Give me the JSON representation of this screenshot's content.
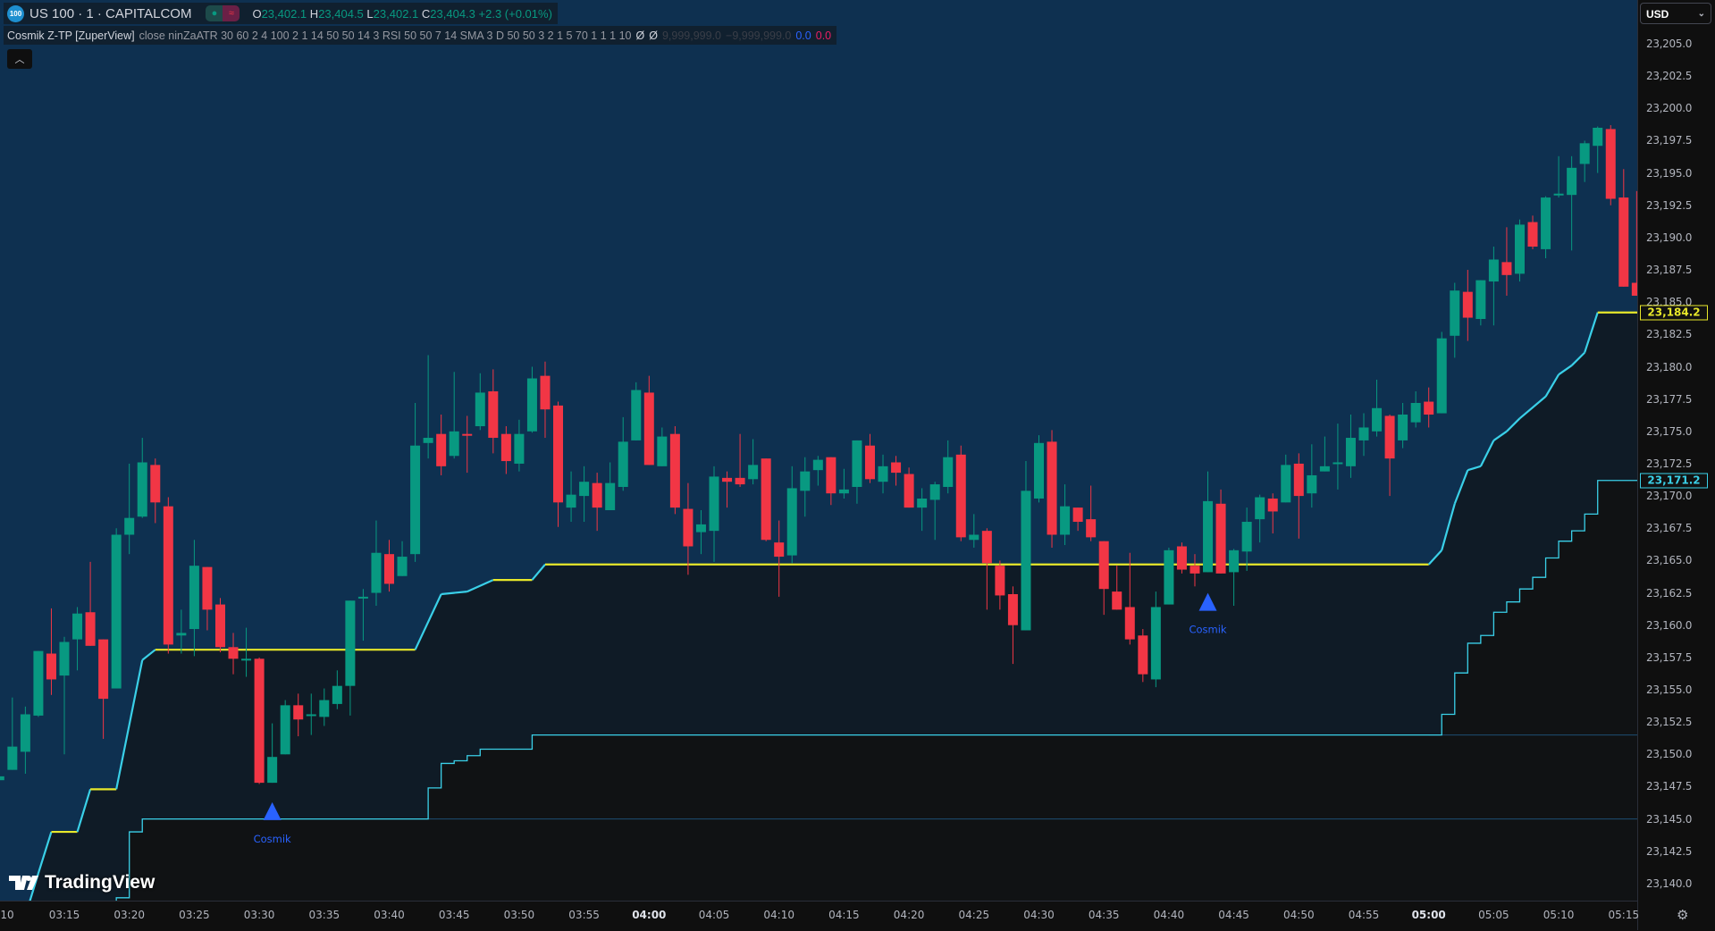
{
  "symbol": {
    "logo_text": "100",
    "title": "US 100 · 1 · CAPITALCOM",
    "open_label": "O",
    "open": "23,402.1",
    "high_label": "H",
    "high": "23,404.5",
    "low_label": "L",
    "low": "23,402.1",
    "close_label": "C",
    "close": "23,404.3",
    "change": "+2.3 (+0.01%)",
    "status_icons": [
      "market-open-dot-icon",
      "data-delay-wave-icon"
    ]
  },
  "indicator": {
    "name": "Cosmik Z-TP [ZuperView]",
    "params": "close ninZaATR 30 60 2 4 100 2 1 14 50 50 14 3 RSI 50 50 7 14 SMA 3 D 50 50 3 2 1 5 70 1 1 1 10",
    "empty1": "Ø",
    "empty2": "Ø",
    "val1": "9,999,999.0",
    "val2": "−9,999,999.0",
    "val3": "0.0",
    "val4": "0.0"
  },
  "collapse_icon": "chevron-up-icon",
  "currency": "USD",
  "watermark": "TradingView",
  "colors": {
    "background": "#0e3050",
    "up": "#089981",
    "down": "#f23645",
    "trail_flat": "#e8e82a",
    "trail_rising": "#3ad0e8",
    "signal": "#2962ff"
  },
  "chart_data": {
    "type": "candlestick",
    "interval": "1 minute",
    "y_ticks": [
      "23,205.0",
      "23,202.5",
      "23,200.0",
      "23,197.5",
      "23,195.0",
      "23,192.5",
      "23,190.0",
      "23,187.5",
      "23,185.0",
      "23,182.5",
      "23,180.0",
      "23,177.5",
      "23,175.0",
      "23,172.5",
      "23,170.0",
      "23,167.5",
      "23,165.0",
      "23,162.5",
      "23,160.0",
      "23,157.5",
      "23,155.0",
      "23,152.5",
      "23,150.0",
      "23,147.5",
      "23,145.0",
      "23,142.5",
      "23,140.0"
    ],
    "x_ticks": [
      {
        "t": "03:10",
        "label": "10"
      },
      {
        "t": "03:15",
        "label": "03:15"
      },
      {
        "t": "03:20",
        "label": "03:20"
      },
      {
        "t": "03:25",
        "label": "03:25"
      },
      {
        "t": "03:30",
        "label": "03:30"
      },
      {
        "t": "03:35",
        "label": "03:35"
      },
      {
        "t": "03:40",
        "label": "03:40"
      },
      {
        "t": "03:45",
        "label": "03:45"
      },
      {
        "t": "03:50",
        "label": "03:50"
      },
      {
        "t": "03:55",
        "label": "03:55"
      },
      {
        "t": "04:00",
        "label": "04:00",
        "bold": true
      },
      {
        "t": "04:05",
        "label": "04:05"
      },
      {
        "t": "04:10",
        "label": "04:10"
      },
      {
        "t": "04:15",
        "label": "04:15"
      },
      {
        "t": "04:20",
        "label": "04:20"
      },
      {
        "t": "04:25",
        "label": "04:25"
      },
      {
        "t": "04:30",
        "label": "04:30"
      },
      {
        "t": "04:35",
        "label": "04:35"
      },
      {
        "t": "04:40",
        "label": "04:40"
      },
      {
        "t": "04:45",
        "label": "04:45"
      },
      {
        "t": "04:50",
        "label": "04:50"
      },
      {
        "t": "04:55",
        "label": "04:55"
      },
      {
        "t": "05:00",
        "label": "05:00",
        "bold": true
      },
      {
        "t": "05:05",
        "label": "05:05"
      },
      {
        "t": "05:10",
        "label": "05:10"
      },
      {
        "t": "05:15",
        "label": "05:15"
      }
    ],
    "ylim": [
      23139.0,
      23208.4
    ],
    "grid": false,
    "candles_columns": [
      "time",
      "open",
      "high",
      "low",
      "close"
    ],
    "candles": [
      [
        "03:10",
        23148.0,
        23148.4,
        23148.0,
        23148.3
      ],
      [
        "03:11",
        23148.8,
        23154.4,
        23148.8,
        23150.6
      ],
      [
        "03:12",
        23150.2,
        23153.7,
        23148.5,
        23153.1
      ],
      [
        "03:13",
        23153.0,
        23158.0,
        23152.9,
        23158.0
      ],
      [
        "03:14",
        23157.8,
        23161.3,
        23154.6,
        23155.8
      ],
      [
        "03:15",
        23156.1,
        23159.1,
        23150.0,
        23158.7
      ],
      [
        "03:16",
        23158.9,
        23161.4,
        23156.5,
        23160.9
      ],
      [
        "03:17",
        23161.0,
        23164.9,
        23158.4,
        23158.4
      ],
      [
        "03:18",
        23158.9,
        23158.9,
        23151.2,
        23154.3
      ],
      [
        "03:19",
        23155.1,
        23167.5,
        23155.1,
        23167.0
      ],
      [
        "03:20",
        23167.0,
        23172.5,
        23165.5,
        23168.3
      ],
      [
        "03:21",
        23168.4,
        23174.5,
        23168.3,
        23172.6
      ],
      [
        "03:22",
        23172.4,
        23172.9,
        23167.9,
        23169.5
      ],
      [
        "03:23",
        23169.2,
        23169.9,
        23157.8,
        23158.5
      ],
      [
        "03:24",
        23159.2,
        23161.2,
        23157.8,
        23159.4
      ],
      [
        "03:25",
        23159.7,
        23166.6,
        23157.6,
        23164.6
      ],
      [
        "03:26",
        23164.5,
        23164.5,
        23159.6,
        23161.2
      ],
      [
        "03:27",
        23161.6,
        23162.1,
        23157.9,
        23158.3
      ],
      [
        "03:28",
        23158.3,
        23159.4,
        23156.2,
        23157.4
      ],
      [
        "03:29",
        23157.3,
        23159.8,
        23156.0,
        23157.4
      ],
      [
        "03:30",
        23157.4,
        23157.5,
        23147.7,
        23147.8
      ],
      [
        "03:31",
        23147.8,
        23152.4,
        23147.8,
        23149.8
      ],
      [
        "03:32",
        23150.0,
        23154.2,
        23150.0,
        23153.8
      ],
      [
        "03:33",
        23153.8,
        23154.7,
        23151.4,
        23152.7
      ],
      [
        "03:34",
        23153.0,
        23154.7,
        23151.5,
        23153.1
      ],
      [
        "03:35",
        23152.9,
        23155.1,
        23152.2,
        23154.2
      ],
      [
        "03:36",
        23153.9,
        23156.5,
        23153.5,
        23155.3
      ],
      [
        "03:37",
        23155.3,
        23161.9,
        23153.0,
        23161.9
      ],
      [
        "03:38",
        23162.1,
        23162.8,
        23158.8,
        23162.2
      ],
      [
        "03:39",
        23162.5,
        23168.1,
        23161.5,
        23165.6
      ],
      [
        "03:40",
        23165.5,
        23166.6,
        23162.6,
        23163.2
      ],
      [
        "03:41",
        23163.8,
        23166.5,
        23163.8,
        23165.3
      ],
      [
        "03:42",
        23165.5,
        23177.2,
        23164.9,
        23173.9
      ],
      [
        "03:43",
        23174.1,
        23180.9,
        23172.9,
        23174.5
      ],
      [
        "03:44",
        23174.8,
        23176.3,
        23171.6,
        23172.3
      ],
      [
        "03:45",
        23173.1,
        23179.6,
        23172.9,
        23175.0
      ],
      [
        "03:46",
        23174.8,
        23176.2,
        23171.8,
        23174.7
      ],
      [
        "03:47",
        23175.4,
        23179.5,
        23175.1,
        23178.0
      ],
      [
        "03:48",
        23178.1,
        23179.8,
        23173.3,
        23174.5
      ],
      [
        "03:49",
        23174.8,
        23175.4,
        23171.7,
        23172.7
      ],
      [
        "03:50",
        23172.5,
        23175.9,
        23171.9,
        23174.8
      ],
      [
        "03:51",
        23175.0,
        23180.0,
        23174.9,
        23179.1
      ],
      [
        "03:52",
        23179.3,
        23180.4,
        23174.5,
        23176.7
      ],
      [
        "03:53",
        23177.0,
        23177.3,
        23167.6,
        23169.5
      ],
      [
        "03:54",
        23169.1,
        23171.9,
        23168.0,
        23170.1
      ],
      [
        "03:55",
        23170.0,
        23172.3,
        23168.0,
        23171.1
      ],
      [
        "03:56",
        23171.0,
        23171.8,
        23167.3,
        23169.1
      ],
      [
        "03:57",
        23168.9,
        23172.6,
        23168.9,
        23171.0
      ],
      [
        "03:58",
        23170.7,
        23176.1,
        23170.4,
        23174.2
      ],
      [
        "03:59",
        23174.3,
        23178.8,
        23174.3,
        23178.2
      ],
      [
        "04:00",
        23178.0,
        23179.3,
        23172.4,
        23172.4
      ],
      [
        "04:01",
        23172.3,
        23175.3,
        23172.3,
        23174.6
      ],
      [
        "04:02",
        23174.8,
        23175.4,
        23168.6,
        23169.1
      ],
      [
        "04:03",
        23169.0,
        23171.0,
        23163.9,
        23166.1
      ],
      [
        "04:04",
        23167.2,
        23168.9,
        23165.5,
        23167.8
      ],
      [
        "04:05",
        23167.3,
        23172.3,
        23164.9,
        23171.5
      ],
      [
        "04:06",
        23171.4,
        23171.9,
        23169.1,
        23171.1
      ],
      [
        "04:07",
        23171.4,
        23174.8,
        23170.7,
        23170.9
      ],
      [
        "04:08",
        23171.3,
        23174.4,
        23170.9,
        23172.4
      ],
      [
        "04:09",
        23172.9,
        23172.9,
        23166.5,
        23166.6
      ],
      [
        "04:10",
        23166.4,
        23168.1,
        23162.2,
        23165.3
      ],
      [
        "04:11",
        23165.4,
        23172.3,
        23164.8,
        23170.6
      ],
      [
        "04:12",
        23170.4,
        23173.0,
        23168.4,
        23171.9
      ],
      [
        "04:13",
        23172.0,
        23173.1,
        23170.8,
        23172.8
      ],
      [
        "04:14",
        23173.0,
        23173.0,
        23169.3,
        23170.2
      ],
      [
        "04:15",
        23170.2,
        23172.1,
        23169.8,
        23170.5
      ],
      [
        "04:16",
        23170.7,
        23174.3,
        23169.4,
        23174.3
      ],
      [
        "04:17",
        23173.9,
        23174.8,
        23171.0,
        23171.3
      ],
      [
        "04:18",
        23171.1,
        23173.2,
        23170.2,
        23172.3
      ],
      [
        "04:19",
        23172.6,
        23173.1,
        23170.8,
        23171.8
      ],
      [
        "04:20",
        23171.7,
        23172.2,
        23169.1,
        23169.1
      ],
      [
        "04:21",
        23169.1,
        23170.6,
        23167.3,
        23169.8
      ],
      [
        "04:22",
        23169.7,
        23171.1,
        23166.6,
        23170.9
      ],
      [
        "04:23",
        23170.7,
        23174.3,
        23170.2,
        23173.0
      ],
      [
        "04:24",
        23173.2,
        23173.9,
        23166.5,
        23166.8
      ],
      [
        "04:25",
        23166.6,
        23168.6,
        23166.0,
        23167.0
      ],
      [
        "04:26",
        23167.3,
        23167.5,
        23161.2,
        23164.8
      ],
      [
        "04:27",
        23164.6,
        23165.0,
        23161.2,
        23162.3
      ],
      [
        "04:28",
        23162.4,
        23163.0,
        23157.0,
        23160.0
      ],
      [
        "04:29",
        23159.6,
        23172.7,
        23159.6,
        23170.4
      ],
      [
        "04:30",
        23169.8,
        23174.7,
        23169.5,
        23174.1
      ],
      [
        "04:31",
        23174.2,
        23175.1,
        23166.0,
        23167.0
      ],
      [
        "04:32",
        23167.0,
        23170.9,
        23166.2,
        23169.2
      ],
      [
        "04:33",
        23169.1,
        23169.1,
        23167.3,
        23168.0
      ],
      [
        "04:34",
        23168.2,
        23170.8,
        23166.5,
        23166.8
      ],
      [
        "04:35",
        23166.5,
        23166.5,
        23160.8,
        23162.8
      ],
      [
        "04:36",
        23162.6,
        23164.6,
        23161.2,
        23161.2
      ],
      [
        "04:37",
        23161.4,
        23165.6,
        23158.5,
        23158.9
      ],
      [
        "04:38",
        23159.2,
        23159.7,
        23155.6,
        23156.2
      ],
      [
        "04:39",
        23155.8,
        23162.6,
        23155.2,
        23161.4
      ],
      [
        "04:40",
        23161.6,
        23166.0,
        23161.6,
        23165.8
      ],
      [
        "04:41",
        23166.1,
        23166.4,
        23164.0,
        23164.3
      ],
      [
        "04:42",
        23164.6,
        23165.5,
        23163.0,
        23164.0
      ],
      [
        "04:43",
        23164.1,
        23171.9,
        23164.1,
        23169.6
      ],
      [
        "04:44",
        23169.4,
        23170.5,
        23164.0,
        23164.0
      ],
      [
        "04:45",
        23164.1,
        23165.9,
        23161.5,
        23165.8
      ],
      [
        "04:46",
        23165.7,
        23169.1,
        23164.2,
        23168.0
      ],
      [
        "04:47",
        23168.2,
        23170.1,
        23166.4,
        23169.9
      ],
      [
        "04:48",
        23169.8,
        23170.2,
        23167.1,
        23168.8
      ],
      [
        "04:49",
        23169.5,
        23173.2,
        23169.5,
        23172.4
      ],
      [
        "04:50",
        23172.5,
        23173.3,
        23166.7,
        23170.0
      ],
      [
        "04:51",
        23170.2,
        23174.0,
        23169.1,
        23171.6
      ],
      [
        "04:52",
        23171.9,
        23174.6,
        23171.9,
        23172.3
      ],
      [
        "04:53",
        23172.5,
        23175.6,
        23170.5,
        23172.6
      ],
      [
        "04:54",
        23172.3,
        23176.3,
        23171.4,
        23174.5
      ],
      [
        "04:55",
        23174.3,
        23176.4,
        23173.1,
        23175.3
      ],
      [
        "04:56",
        23175.0,
        23179.0,
        23174.6,
        23176.8
      ],
      [
        "04:57",
        23176.2,
        23176.3,
        23170.0,
        23172.9
      ],
      [
        "04:58",
        23174.3,
        23177.2,
        23173.7,
        23176.3
      ],
      [
        "04:59",
        23175.7,
        23178.1,
        23175.3,
        23177.2
      ],
      [
        "05:00",
        23177.3,
        23178.4,
        23175.3,
        23176.3
      ],
      [
        "05:01",
        23176.4,
        23182.7,
        23176.4,
        23182.2
      ],
      [
        "05:02",
        23182.4,
        23186.5,
        23180.7,
        23185.9
      ],
      [
        "05:03",
        23185.8,
        23187.5,
        23182.0,
        23183.8
      ],
      [
        "05:04",
        23183.7,
        23186.7,
        23183.2,
        23186.7
      ],
      [
        "05:05",
        23186.6,
        23189.3,
        23183.2,
        23188.3
      ],
      [
        "05:06",
        23188.1,
        23190.8,
        23185.5,
        23187.1
      ],
      [
        "05:07",
        23187.2,
        23191.4,
        23186.6,
        23191.0
      ],
      [
        "05:08",
        23191.2,
        23191.7,
        23189.1,
        23189.3
      ],
      [
        "05:09",
        23189.1,
        23193.2,
        23188.4,
        23193.1
      ],
      [
        "05:10",
        23193.3,
        23196.3,
        23193.1,
        23193.4
      ],
      [
        "05:11",
        23193.3,
        23196.3,
        23189.0,
        23195.4
      ],
      [
        "05:12",
        23195.7,
        23197.5,
        23194.3,
        23197.3
      ],
      [
        "05:13",
        23197.1,
        23198.6,
        23195.0,
        23198.5
      ],
      [
        "05:14",
        23198.4,
        23198.7,
        23192.5,
        23193.0
      ],
      [
        "05:15",
        23193.1,
        23195.3,
        23186.2,
        23186.2
      ],
      [
        "05:16",
        23186.5,
        23193.6,
        23185.5,
        23185.5
      ]
    ],
    "upper_trail": [
      [
        "03:12",
        23137.5
      ],
      [
        "03:13",
        23140.8
      ],
      [
        "03:14",
        23144.0
      ],
      [
        "03:16",
        23144.0
      ],
      [
        "03:17",
        23147.3
      ],
      [
        "03:19",
        23147.3
      ],
      [
        "03:21",
        23157.3
      ],
      [
        "03:22",
        23158.1
      ],
      [
        "03:42",
        23158.1
      ],
      [
        "03:44",
        23162.4
      ],
      [
        "03:46",
        23162.6
      ],
      [
        "03:48",
        23163.5
      ],
      [
        "03:51",
        23163.5
      ],
      [
        "03:52",
        23164.7
      ],
      [
        "05:00",
        23164.7
      ],
      [
        "05:01",
        23165.8
      ],
      [
        "05:02",
        23169.4
      ],
      [
        "05:03",
        23172.0
      ],
      [
        "05:04",
        23172.3
      ],
      [
        "05:05",
        23174.3
      ],
      [
        "05:06",
        23175.0
      ],
      [
        "05:07",
        23176.0
      ],
      [
        "05:09",
        23177.7
      ],
      [
        "05:10",
        23179.4
      ],
      [
        "05:11",
        23180.1
      ],
      [
        "05:12",
        23181.1
      ],
      [
        "05:13",
        23184.2
      ],
      [
        "05:17",
        23184.2
      ]
    ],
    "lower_trail": [
      [
        "03:18",
        23137.0
      ],
      [
        "03:19",
        23138.9
      ],
      [
        "03:20",
        23144.0
      ],
      [
        "03:21",
        23145.0
      ],
      [
        "03:43",
        23147.4
      ],
      [
        "03:44",
        23149.3
      ],
      [
        "03:45",
        23149.5
      ],
      [
        "03:46",
        23149.9
      ],
      [
        "03:47",
        23150.4
      ],
      [
        "03:51",
        23151.5
      ],
      [
        "05:01",
        23153.1
      ],
      [
        "05:02",
        23156.3
      ],
      [
        "05:03",
        23158.6
      ],
      [
        "05:04",
        23159.2
      ],
      [
        "05:05",
        23161.0
      ],
      [
        "05:06",
        23161.8
      ],
      [
        "05:07",
        23162.8
      ],
      [
        "05:08",
        23163.7
      ],
      [
        "05:09",
        23165.2
      ],
      [
        "05:10",
        23166.5
      ],
      [
        "05:11",
        23167.3
      ],
      [
        "05:12",
        23168.6
      ],
      [
        "05:13",
        23171.2
      ],
      [
        "05:17",
        23171.2
      ]
    ],
    "extended_levels": [
      {
        "from": "03:21",
        "value": 23145.0
      },
      {
        "from": "05:00",
        "value": 23151.5
      }
    ],
    "signals": [
      {
        "time": "03:31",
        "price": 23145.6,
        "label": "Cosmik",
        "type": "buy"
      },
      {
        "time": "04:43",
        "price": 23161.8,
        "label": "Cosmik",
        "type": "buy"
      }
    ],
    "price_tags": [
      {
        "label": "23,184.2",
        "value": 23184.2,
        "color": "#e8e82a"
      },
      {
        "label": "23,171.2",
        "value": 23171.2,
        "color": "#3ad0e8"
      }
    ]
  }
}
